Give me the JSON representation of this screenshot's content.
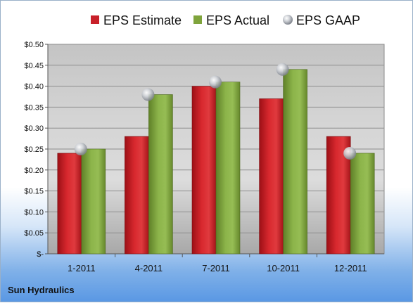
{
  "company": "Sun Hydraulics",
  "colors": {
    "estimate": "#c8202a",
    "actual": "#7fa43c",
    "gaap": "#b8bcc4"
  },
  "chart_data": {
    "type": "bar",
    "categories": [
      "1-2011",
      "4-2011",
      "7-2011",
      "10-2011",
      "12-2011"
    ],
    "series": [
      {
        "name": "EPS Estimate",
        "kind": "bar",
        "values": [
          0.24,
          0.28,
          0.4,
          0.37,
          0.28
        ]
      },
      {
        "name": "EPS Actual",
        "kind": "bar",
        "values": [
          0.25,
          0.38,
          0.41,
          0.44,
          0.24
        ]
      },
      {
        "name": "EPS GAAP",
        "kind": "marker",
        "values": [
          0.25,
          0.38,
          0.41,
          0.44,
          0.24
        ]
      }
    ],
    "ylim": [
      0,
      0.5
    ],
    "yticks": [
      0,
      0.05,
      0.1,
      0.15,
      0.2,
      0.25,
      0.3,
      0.35,
      0.4,
      0.45,
      0.5
    ],
    "ytick_labels": [
      "$-",
      "$0.05",
      "$0.10",
      "$0.15",
      "$0.20",
      "$0.25",
      "$0.30",
      "$0.35",
      "$0.40",
      "$0.45",
      "$0.50"
    ],
    "grid": true,
    "legend_position": "top"
  }
}
